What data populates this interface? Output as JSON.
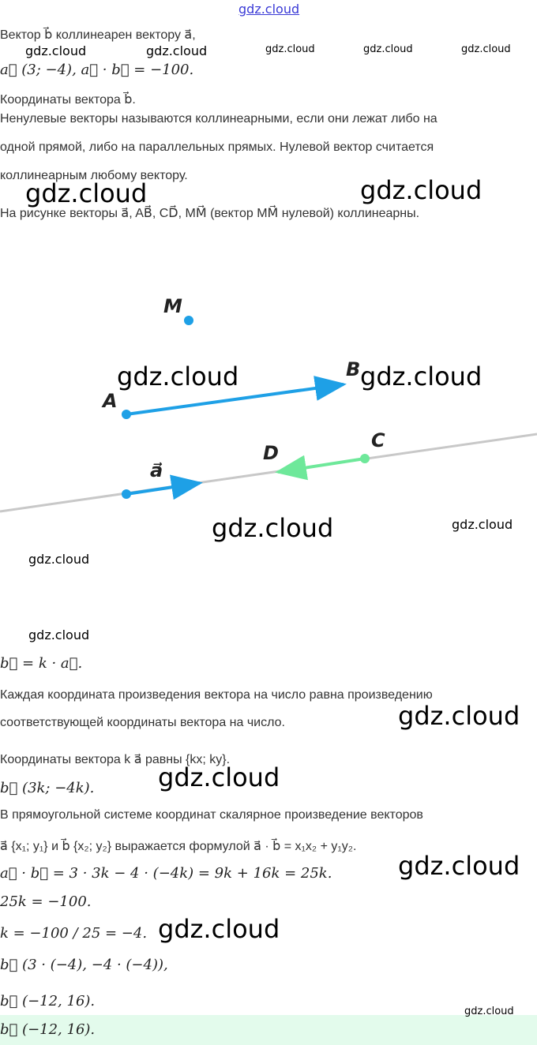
{
  "site_link": "gdz.cloud",
  "lines": {
    "l1": "Вектор b⃗ коллинеарен вектору a⃗,",
    "l2": "a⃗ (3; −4), a⃗ · b⃗ = −100.",
    "l3": "Координаты вектора b⃗.",
    "l4": "Ненулевые векторы называются коллинеарными, если они лежат либо на",
    "l5": "одной прямой, либо на параллельных прямых. Нулевой вектор считается",
    "l6": "коллинеарным любому вектору.",
    "l7": "На рисунке векторы a⃗, AB⃗, CD⃗, MM⃗ (вектор MM⃗ нулевой) коллинеарны.",
    "l8": "b⃗ = k · a⃗.",
    "l9": "Каждая координата произведения вектора на число равна произведению",
    "l10": "соответствующей координаты вектора на число.",
    "l11": "Координаты вектора k a⃗ равны {kx; ky}.",
    "l12": "b⃗ (3k; −4k).",
    "l13": "В прямоугольной системе координат скалярное произведение векторов",
    "l14": "a⃗ {x₁; y₁} и b⃗ {x₂; y₂} выражается формулой a⃗ · b⃗ = x₁x₂ + y₁y₂.",
    "l15": "a⃗ · b⃗ = 3 · 3k − 4 · (−4k) = 9k + 16k = 25k.",
    "l16": "25k = −100.",
    "l17": "k = −100 / 25 = −4.",
    "l18": "b⃗ (3 · (−4), −4 · (−4)),",
    "l19": "b⃗ (−12, 16).",
    "answer": "b⃗ (−12, 16)."
  },
  "diagram": {
    "labels": {
      "M": "M",
      "A": "A",
      "B": "B",
      "C": "C",
      "D": "D",
      "a": "a⃗"
    },
    "colors": {
      "ab": "#1ea0e6",
      "cd": "#6ee89a",
      "line": "#c8c8c8",
      "point": "#1ea0e6"
    }
  },
  "watermark": "gdz.cloud",
  "colors": {
    "answer_bg": "#e3fbec",
    "link": "#3a3ad6"
  }
}
